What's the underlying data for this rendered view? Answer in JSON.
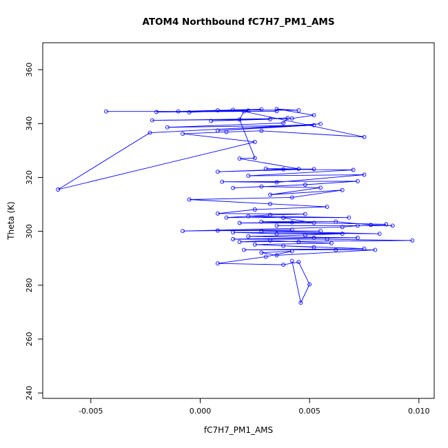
{
  "chart_data": {
    "type": "line",
    "title": "ATOM4 Northbound fC7H7_PM1_AMS",
    "xlabel": "fC7H7_PM1_AMS",
    "ylabel": "Theta (K)",
    "series_color": "#0000FF",
    "marker": "open-circle",
    "legend": "none",
    "grid": false,
    "xlim": [
      -0.0072,
      0.0107
    ],
    "ylim": [
      238,
      370
    ],
    "x_ticks": [
      -0.005,
      0.0,
      0.005,
      0.01
    ],
    "x_tick_labels": [
      "-0.005",
      "0.000",
      "0.005",
      "0.010"
    ],
    "y_ticks": [
      240,
      260,
      280,
      300,
      320,
      340,
      360
    ],
    "y_tick_labels": [
      "240",
      "260",
      "280",
      "300",
      "320",
      "340",
      "360"
    ],
    "points": [
      [
        -0.0043,
        344.5
      ],
      [
        0.0035,
        344.6
      ],
      [
        -0.002,
        344.3
      ],
      [
        0.0022,
        344.8
      ],
      [
        -0.001,
        344.5
      ],
      [
        0.0008,
        344.9
      ],
      [
        0.0028,
        345.3
      ],
      [
        -0.0005,
        344.2
      ],
      [
        0.0015,
        345.1
      ],
      [
        0.0045,
        344.9
      ],
      [
        0.0035,
        345.4
      ],
      [
        0.0052,
        343.1
      ],
      [
        0.0042,
        341.9
      ],
      [
        -0.0022,
        341.2
      ],
      [
        0.0032,
        341.6
      ],
      [
        0.0005,
        341.0
      ],
      [
        0.004,
        342.1
      ],
      [
        0.0038,
        340.2
      ],
      [
        -0.0015,
        338.6
      ],
      [
        0.0052,
        339.4
      ],
      [
        0.0008,
        337.4
      ],
      [
        0.0055,
        339.9
      ],
      [
        -0.0023,
        336.6
      ],
      [
        -0.0065,
        315.5
      ],
      [
        0.0025,
        333.2
      ],
      [
        -0.0008,
        336.2
      ],
      [
        0.0012,
        336.9
      ],
      [
        0.0028,
        337.3
      ],
      [
        0.0075,
        335.0
      ],
      [
        0.002,
        344.5
      ],
      [
        0.0018,
        341.5
      ],
      [
        0.0025,
        327.2
      ],
      [
        0.0018,
        327.0
      ],
      [
        0.0045,
        323.2
      ],
      [
        0.0008,
        322.1
      ],
      [
        0.0052,
        323.1
      ],
      [
        0.003,
        323.3
      ],
      [
        0.0038,
        323.0
      ],
      [
        0.007,
        322.8
      ],
      [
        0.0022,
        320.6
      ],
      [
        0.0075,
        321.0
      ],
      [
        0.0035,
        318.2
      ],
      [
        0.001,
        318.4
      ],
      [
        0.0072,
        318.6
      ],
      [
        0.0048,
        317.3
      ],
      [
        0.0015,
        316.1
      ],
      [
        0.0028,
        316.6
      ],
      [
        0.0055,
        316.2
      ],
      [
        0.0032,
        313.6
      ],
      [
        0.0065,
        315.3
      ],
      [
        0.0042,
        312.6
      ],
      [
        -0.0005,
        311.8
      ],
      [
        0.0032,
        310.2
      ],
      [
        0.0058,
        309.1
      ],
      [
        0.0025,
        308.1
      ],
      [
        0.0008,
        306.6
      ],
      [
        0.0048,
        306.4
      ],
      [
        0.0032,
        306.1
      ],
      [
        0.0012,
        305.1
      ],
      [
        0.0068,
        305.1
      ],
      [
        0.0022,
        305.6
      ],
      [
        0.0038,
        305.0
      ],
      [
        0.0052,
        303.1
      ],
      [
        0.0018,
        303.1
      ],
      [
        0.0042,
        303.3
      ],
      [
        0.0085,
        302.6
      ],
      [
        0.0028,
        303.6
      ],
      [
        0.0062,
        303.6
      ],
      [
        0.0078,
        302.4
      ],
      [
        0.0088,
        302.1
      ],
      [
        0.0035,
        302.1
      ],
      [
        0.0072,
        302.1
      ],
      [
        0.0065,
        301.6
      ],
      [
        -0.0008,
        300.1
      ],
      [
        0.0042,
        300.6
      ],
      [
        0.0008,
        300.3
      ],
      [
        0.0055,
        300.1
      ],
      [
        0.0028,
        300.1
      ],
      [
        0.0082,
        299.1
      ],
      [
        0.0015,
        299.6
      ],
      [
        0.0035,
        299.1
      ],
      [
        0.0065,
        299.1
      ],
      [
        0.0048,
        298.6
      ],
      [
        0.0022,
        298.1
      ],
      [
        0.0072,
        297.6
      ],
      [
        0.0052,
        297.6
      ],
      [
        0.0015,
        297.1
      ],
      [
        0.0058,
        297.1
      ],
      [
        0.0097,
        296.6
      ],
      [
        0.0018,
        296.1
      ],
      [
        0.0032,
        296.6
      ],
      [
        0.0045,
        296.1
      ],
      [
        0.006,
        295.6
      ],
      [
        0.0025,
        295.1
      ],
      [
        0.0052,
        294.1
      ],
      [
        0.0038,
        294.6
      ],
      [
        0.0075,
        293.6
      ],
      [
        0.002,
        293.1
      ],
      [
        0.0062,
        293.1
      ],
      [
        0.008,
        293.1
      ],
      [
        0.0035,
        291.1
      ],
      [
        0.0028,
        292.1
      ],
      [
        0.0042,
        292.6
      ],
      [
        0.003,
        290.6
      ],
      [
        0.0008,
        288.1
      ],
      [
        0.0038,
        287.6
      ],
      [
        0.0045,
        288.6
      ],
      [
        0.005,
        280.3
      ],
      [
        0.0046,
        273.5
      ],
      [
        0.0042,
        289.0
      ]
    ]
  }
}
